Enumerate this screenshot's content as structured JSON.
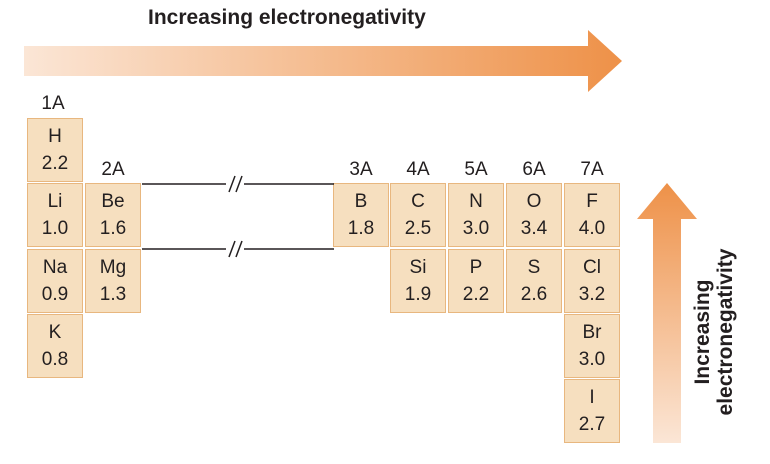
{
  "diagram": {
    "horizontal_label": "Increasing electronegativity",
    "vertical_label": "Increasing electronegativity",
    "arrow_color": "#ee9148",
    "cell_fill": "#f6dfbf",
    "cell_border": "#e8b77f",
    "groups": [
      "1A",
      "2A",
      "3A",
      "4A",
      "5A",
      "6A",
      "7A"
    ],
    "elements": [
      {
        "symbol": "H",
        "value": "2.2"
      },
      {
        "symbol": "Li",
        "value": "1.0"
      },
      {
        "symbol": "Be",
        "value": "1.6"
      },
      {
        "symbol": "B",
        "value": "1.8"
      },
      {
        "symbol": "C",
        "value": "2.5"
      },
      {
        "symbol": "N",
        "value": "3.0"
      },
      {
        "symbol": "O",
        "value": "3.4"
      },
      {
        "symbol": "F",
        "value": "4.0"
      },
      {
        "symbol": "Na",
        "value": "0.9"
      },
      {
        "symbol": "Mg",
        "value": "1.3"
      },
      {
        "symbol": "Si",
        "value": "1.9"
      },
      {
        "symbol": "P",
        "value": "2.2"
      },
      {
        "symbol": "S",
        "value": "2.6"
      },
      {
        "symbol": "Cl",
        "value": "3.2"
      },
      {
        "symbol": "K",
        "value": "0.8"
      },
      {
        "symbol": "Br",
        "value": "3.0"
      },
      {
        "symbol": "I",
        "value": "2.7"
      }
    ]
  }
}
